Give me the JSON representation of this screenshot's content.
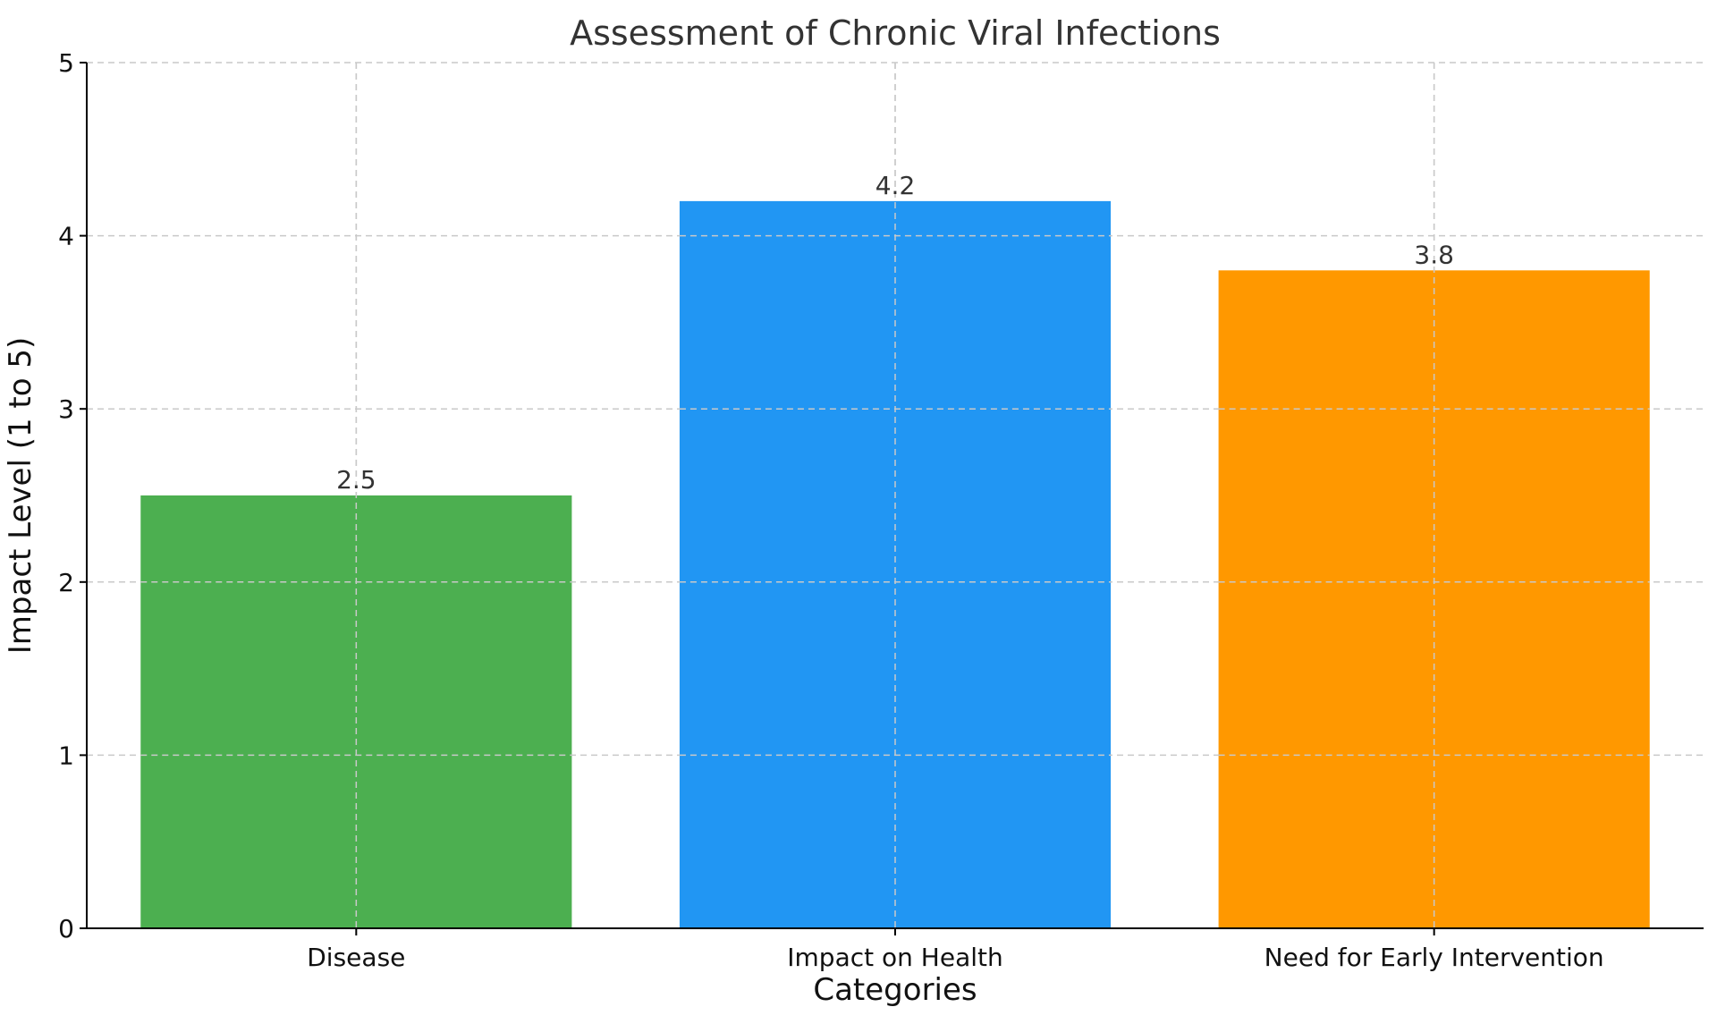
{
  "chart_data": {
    "type": "bar",
    "title": "Assessment of Chronic Viral Infections",
    "xlabel": "Categories",
    "ylabel": "Impact Level (1 to 5)",
    "categories": [
      "Disease",
      "Impact on Health",
      "Need for Early Intervention"
    ],
    "values": [
      2.5,
      4.2,
      3.8
    ],
    "value_labels": [
      "2.5",
      "4.2",
      "3.8"
    ],
    "colors": [
      "#4caf50",
      "#2196f3",
      "#ff9800"
    ],
    "ylim": [
      0,
      5
    ],
    "yticks": [
      0,
      1,
      2,
      3,
      4,
      5
    ],
    "ytick_labels": [
      "0",
      "1",
      "2",
      "3",
      "4",
      "5"
    ],
    "grid": true,
    "legend": "none"
  }
}
